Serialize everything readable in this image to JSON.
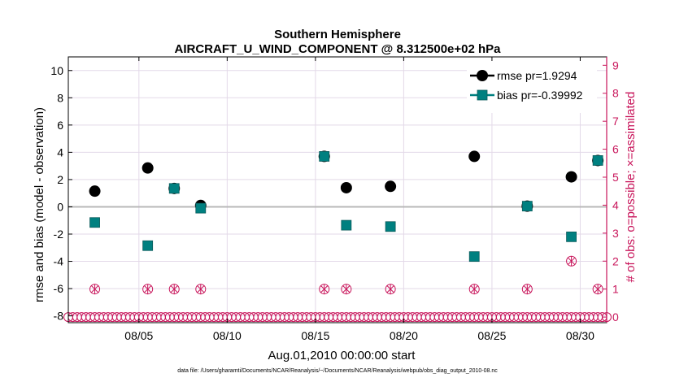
{
  "chart_data": {
    "type": "scatter",
    "title": "Southern Hemisphere",
    "subtitle": "AIRCRAFT_U_WIND_COMPONENT @ 8.312500e+02 hPa",
    "xlabel": "Aug.01,2010 00:00:00 start",
    "ylabel": "rmse and bias (model - observation)",
    "y2label": "# of obs: o=possible; ×=assimilated",
    "footnote": "data file: /Users/gharamti/Documents/NCAR/Reanalysis/~/Documents/NCAR/Reanalysis/webpub/obs_diag_output_2010-08.nc",
    "xlim": [
      1,
      31.5
    ],
    "ylim": [
      -8.5,
      11
    ],
    "y2lim": [
      -0.2,
      9.3
    ],
    "x_ticks": [
      5,
      10,
      15,
      20,
      25,
      30
    ],
    "x_tick_labels": [
      "08/05",
      "08/10",
      "08/15",
      "08/20",
      "08/25",
      "08/30"
    ],
    "y_ticks": [
      -8,
      -6,
      -4,
      -2,
      0,
      2,
      4,
      6,
      8,
      10
    ],
    "y_tick_labels": [
      "-8",
      "-6",
      "-4",
      "-2",
      "0",
      "2",
      "4",
      "6",
      "8",
      "10"
    ],
    "y2_ticks": [
      0,
      1,
      2,
      3,
      4,
      5,
      6,
      7,
      8,
      9
    ],
    "y2_tick_labels": [
      "0",
      "1",
      "2",
      "3",
      "4",
      "5",
      "6",
      "7",
      "8",
      "9"
    ],
    "grid": true,
    "legend_position": "top-right",
    "series": [
      {
        "name": "rmse pr=1.9294",
        "color": "#000000",
        "marker": "circle",
        "x": [
          2.5,
          5.5,
          7.0,
          8.5,
          15.5,
          16.75,
          19.25,
          24.0,
          27.0,
          29.5,
          31.0
        ],
        "values": [
          1.15,
          2.85,
          1.35,
          0.1,
          3.7,
          1.4,
          1.5,
          3.7,
          0.05,
          2.2,
          3.4
        ]
      },
      {
        "name": "bias pr=-0.39992",
        "color": "#008080",
        "marker": "square",
        "x": [
          2.5,
          5.5,
          7.0,
          8.5,
          15.5,
          16.75,
          19.25,
          24.0,
          27.0,
          29.5,
          31.0
        ],
        "values": [
          -1.15,
          -2.85,
          1.35,
          -0.1,
          3.7,
          -1.35,
          -1.45,
          -3.65,
          0.05,
          -2.2,
          3.4
        ]
      }
    ],
    "obs_counts": {
      "color": "#c8145a",
      "assimilated_marker": "circle-x",
      "possible_marker": "open-circle",
      "x": [
        2.5,
        5.5,
        7.0,
        8.5,
        15.5,
        16.75,
        19.25,
        24.0,
        27.0,
        29.5,
        31.0
      ],
      "possible": [
        1,
        1,
        1,
        1,
        1,
        1,
        1,
        1,
        1,
        2,
        1
      ],
      "assimilated": [
        1,
        1,
        1,
        1,
        1,
        1,
        1,
        1,
        1,
        2,
        1
      ],
      "zero_x_start": 1.0,
      "zero_x_end": 31.5,
      "zero_x_step": 0.25
    }
  }
}
